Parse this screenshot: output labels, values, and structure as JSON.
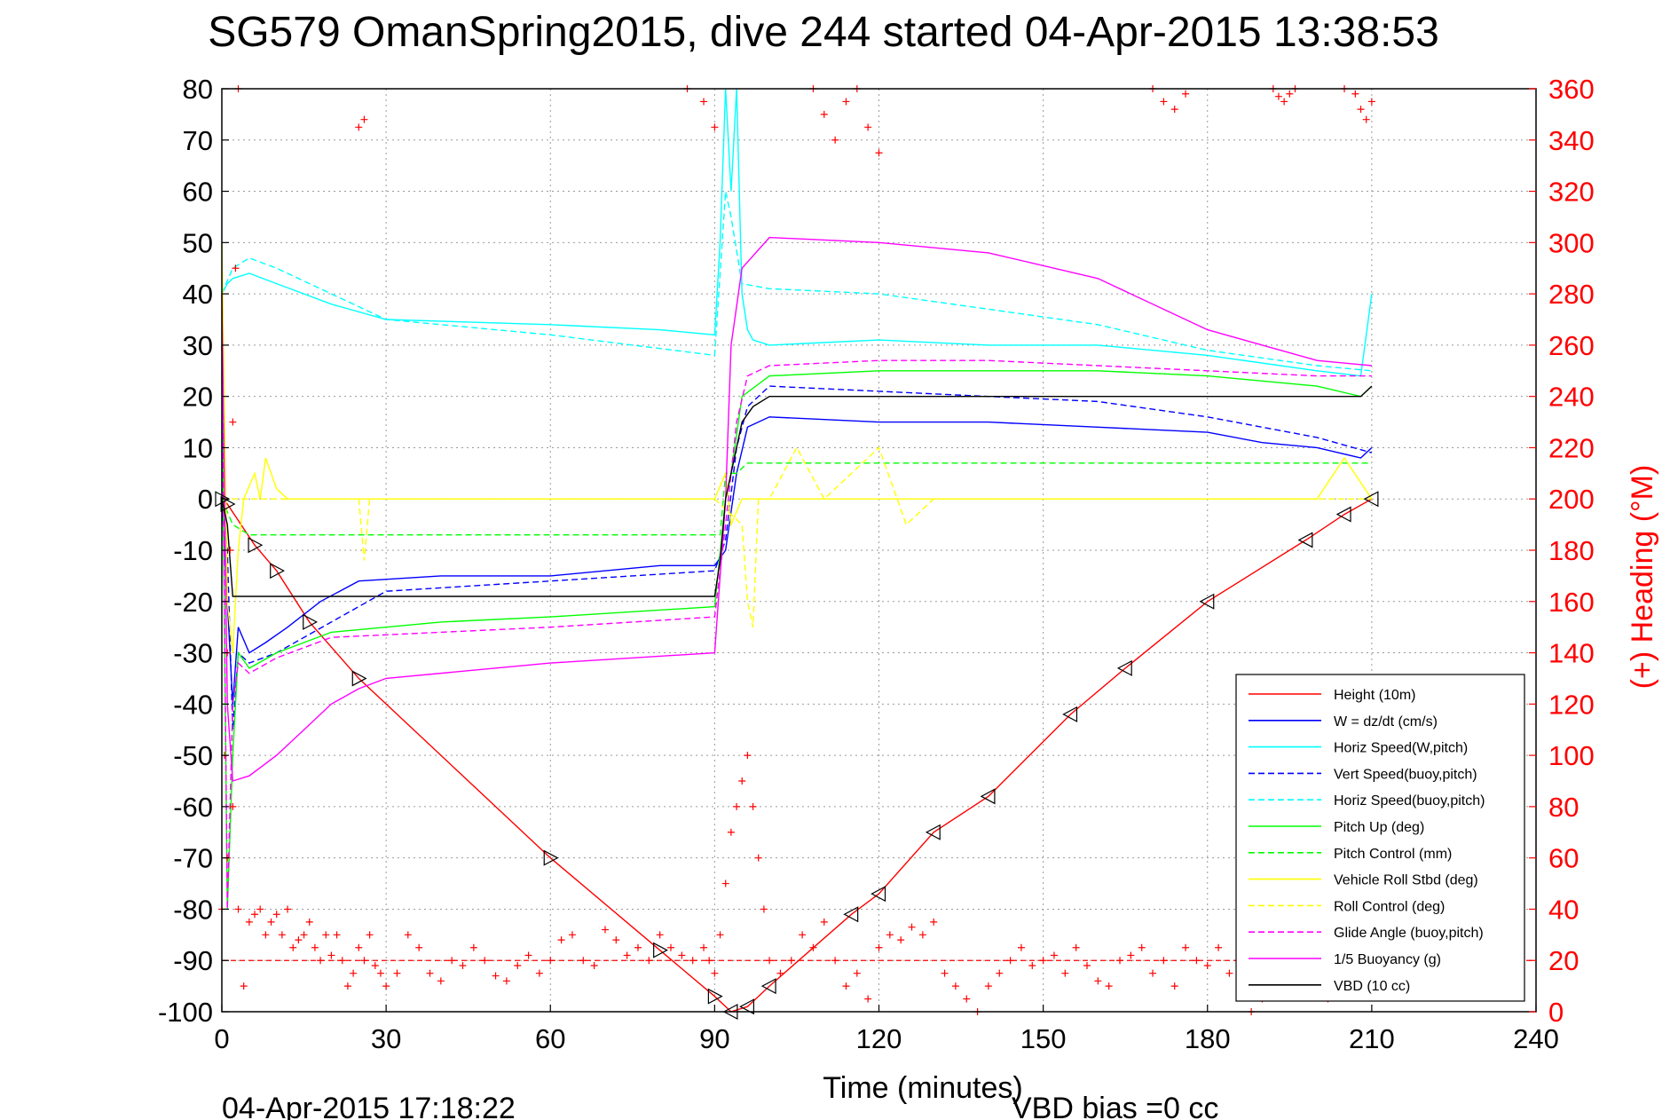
{
  "chart_data": {
    "type": "line",
    "title": "SG579 OmanSpring2015, dive 244 started 04-Apr-2015 13:38:53",
    "xlabel": "Time (minutes)",
    "ylabel_right": "(+) Heading (°M)",
    "xlim": [
      0,
      240
    ],
    "ylim": [
      -100,
      80
    ],
    "ylim_right": [
      0,
      360
    ],
    "x_ticks": [
      "0",
      "30",
      "60",
      "90",
      "120",
      "150",
      "180",
      "210",
      "240"
    ],
    "y_ticks": [
      "80",
      "70",
      "60",
      "50",
      "40",
      "30",
      "20",
      "10",
      "0",
      "-10",
      "-20",
      "-30",
      "-40",
      "-50",
      "-60",
      "-70",
      "-80",
      "-90",
      "-100"
    ],
    "y_ticks_right": [
      "360",
      "340",
      "320",
      "300",
      "280",
      "260",
      "240",
      "220",
      "200",
      "180",
      "160",
      "140",
      "120",
      "100",
      "80",
      "60",
      "40",
      "20",
      "0"
    ],
    "grid": true,
    "legend_position": "lower-right",
    "footer_left": "04-Apr-2015 17:18:22",
    "footer_right": "VBD bias =0 cc",
    "colors": {
      "red": "#ff0000",
      "blue": "#0000ff",
      "cyan": "#00ffff",
      "green": "#00ff00",
      "yellow": "#ffff00",
      "magenta": "#ff00ff",
      "black": "#000000"
    },
    "series": [
      {
        "name": "Height (10m)",
        "color": "#ff0000",
        "dash": false,
        "x": [
          0,
          1,
          6,
          10,
          16,
          25,
          60,
          80,
          90,
          93,
          96,
          100,
          115,
          120,
          130,
          140,
          155,
          165,
          180,
          198,
          205,
          210
        ],
        "y": [
          0,
          -1,
          -9,
          -14,
          -24,
          -35,
          -70,
          -88,
          -97,
          -100,
          -99,
          -95,
          -81,
          -77,
          -65,
          -58,
          -42,
          -33,
          -20,
          -8,
          -3,
          0
        ]
      },
      {
        "name": "W = dz/dt (cm/s)",
        "color": "#0000ff",
        "dash": false,
        "x": [
          0,
          1,
          2,
          3,
          5,
          8,
          12,
          18,
          25,
          40,
          60,
          80,
          90,
          92,
          94,
          96,
          100,
          120,
          140,
          160,
          180,
          190,
          200,
          208,
          210
        ],
        "y": [
          0,
          -20,
          -40,
          -25,
          -30,
          -28,
          -25,
          -20,
          -16,
          -15,
          -15,
          -13,
          -13,
          -10,
          5,
          14,
          16,
          15,
          15,
          14,
          13,
          11,
          10,
          8,
          10
        ]
      },
      {
        "name": "Horiz Speed(W,pitch)",
        "color": "#00ffff",
        "dash": false,
        "x": [
          0,
          1,
          2,
          5,
          10,
          20,
          30,
          60,
          80,
          90,
          91,
          92,
          93,
          94,
          95,
          96,
          97,
          100,
          120,
          140,
          160,
          180,
          200,
          208,
          210
        ],
        "y": [
          40,
          42,
          43,
          44,
          42,
          38,
          35,
          34,
          33,
          32,
          50,
          80,
          60,
          80,
          40,
          33,
          31,
          30,
          31,
          30,
          30,
          28,
          25,
          24,
          40
        ]
      },
      {
        "name": "Vert Speed(buoy,pitch)",
        "color": "#0000ff",
        "dash": true,
        "x": [
          0,
          1,
          2,
          3,
          5,
          10,
          20,
          30,
          60,
          90,
          92,
          94,
          96,
          100,
          120,
          140,
          160,
          180,
          200,
          210
        ],
        "y": [
          0,
          -10,
          -45,
          -30,
          -32,
          -30,
          -24,
          -18,
          -16,
          -14,
          -8,
          10,
          18,
          22,
          21,
          20,
          19,
          16,
          12,
          9
        ]
      },
      {
        "name": "Horiz Speed(buoy,pitch)",
        "color": "#00ffff",
        "dash": true,
        "x": [
          0,
          2,
          5,
          10,
          20,
          30,
          60,
          90,
          92,
          93,
          95,
          100,
          120,
          140,
          160,
          180,
          200,
          210
        ],
        "y": [
          40,
          45,
          47,
          45,
          40,
          35,
          32,
          28,
          60,
          55,
          42,
          41,
          40,
          37,
          34,
          29,
          26,
          25
        ]
      },
      {
        "name": "Pitch Up (deg)",
        "color": "#00ff00",
        "dash": false,
        "x": [
          0,
          1,
          2,
          3,
          5,
          10,
          20,
          40,
          60,
          90,
          92,
          93,
          95,
          100,
          120,
          140,
          160,
          180,
          200,
          208,
          210
        ],
        "y": [
          25,
          -80,
          -50,
          -30,
          -33,
          -30,
          -26,
          -24,
          -23,
          -21,
          0,
          5,
          20,
          24,
          25,
          25,
          25,
          24,
          22,
          20,
          22
        ]
      },
      {
        "name": "Pitch Control (mm)",
        "color": "#00ff00",
        "dash": true,
        "x": [
          0,
          2,
          5,
          20,
          60,
          91,
          92,
          94,
          96,
          100,
          120,
          160,
          200,
          210
        ],
        "y": [
          0,
          -5,
          -7,
          -7,
          -7,
          -7,
          5,
          5,
          7,
          7,
          7,
          7,
          7,
          7
        ]
      },
      {
        "name": "Vehicle Roll Stbd (deg)",
        "color": "#ffff00",
        "dash": false,
        "x": [
          0,
          1,
          2,
          3,
          4,
          6,
          7,
          8,
          10,
          12,
          15,
          20,
          40,
          60,
          80,
          90,
          92,
          93,
          95,
          100,
          105,
          110,
          120,
          130,
          140,
          160,
          180,
          200,
          205,
          210
        ],
        "y": [
          50,
          -20,
          -30,
          -10,
          0,
          5,
          0,
          8,
          2,
          0,
          0,
          0,
          0,
          0,
          0,
          0,
          5,
          -5,
          0,
          0,
          0,
          0,
          0,
          0,
          0,
          0,
          0,
          0,
          8,
          0
        ]
      },
      {
        "name": "Roll Control (deg)",
        "color": "#ffff00",
        "dash": true,
        "x": [
          0,
          2,
          5,
          20,
          25,
          26,
          27,
          40,
          60,
          80,
          90,
          95,
          96,
          97,
          98,
          100,
          105,
          110,
          120,
          125,
          130,
          135,
          140,
          150,
          160,
          180,
          200,
          210
        ],
        "y": [
          0,
          0,
          0,
          0,
          0,
          -12,
          0,
          0,
          0,
          0,
          0,
          -5,
          -20,
          -25,
          0,
          0,
          10,
          0,
          10,
          -5,
          0,
          0,
          0,
          0,
          0,
          0,
          0,
          0
        ]
      },
      {
        "name": "Glide Angle (buoy,pitch)",
        "color": "#ff00ff",
        "dash": true,
        "x": [
          0,
          1,
          2,
          3,
          5,
          10,
          20,
          40,
          60,
          90,
          92,
          94,
          96,
          100,
          120,
          140,
          160,
          180,
          200,
          210
        ],
        "y": [
          30,
          -80,
          -40,
          -32,
          -34,
          -31,
          -27,
          -26,
          -25,
          -23,
          -5,
          15,
          24,
          26,
          27,
          27,
          26,
          25,
          24,
          24
        ]
      },
      {
        "name": "1/5 Buoyancy (g)",
        "color": "#ff00ff",
        "dash": false,
        "x": [
          0,
          1,
          2,
          5,
          10,
          15,
          20,
          25,
          30,
          60,
          90,
          92,
          93,
          95,
          100,
          120,
          140,
          160,
          180,
          200,
          210
        ],
        "y": [
          40,
          -40,
          -55,
          -54,
          -50,
          -45,
          -40,
          -37,
          -35,
          -32,
          -30,
          0,
          30,
          45,
          51,
          50,
          48,
          43,
          33,
          27,
          26
        ]
      },
      {
        "name": "VBD (10 cc)",
        "color": "#000000",
        "dash": false,
        "x": [
          0,
          1,
          2,
          90,
          91,
          92,
          93,
          95,
          97,
          100,
          180,
          208,
          210
        ],
        "y": [
          0,
          -5,
          -19,
          -19,
          -12,
          0,
          5,
          15,
          18,
          20,
          20,
          20,
          22
        ]
      }
    ],
    "heading": {
      "name": "(+) Heading",
      "color": "#ff0000",
      "x": [
        0,
        1,
        2,
        3,
        4,
        5,
        6,
        7,
        8,
        9,
        10,
        11,
        12,
        13,
        14,
        15,
        16,
        17,
        18,
        19,
        20,
        21,
        22,
        23,
        24,
        25,
        26,
        27,
        28,
        29,
        30,
        32,
        34,
        36,
        38,
        40,
        42,
        44,
        46,
        48,
        50,
        52,
        54,
        56,
        58,
        60,
        62,
        64,
        66,
        68,
        70,
        72,
        74,
        76,
        78,
        80,
        82,
        84,
        86,
        88,
        89,
        90,
        91,
        92,
        93,
        94,
        95,
        96,
        97,
        98,
        99,
        100,
        102,
        104,
        106,
        108,
        110,
        112,
        114,
        116,
        118,
        120,
        122,
        124,
        126,
        128,
        130,
        132,
        134,
        136,
        138,
        140,
        142,
        144,
        146,
        148,
        150,
        152,
        154,
        156,
        158,
        160,
        162,
        164,
        166,
        168,
        170,
        172,
        174,
        176,
        178,
        180,
        182,
        184,
        186,
        188,
        190,
        192,
        194,
        196,
        198,
        200,
        202,
        204,
        206,
        208,
        210
      ],
      "y": [
        40,
        60,
        80,
        40,
        10,
        35,
        38,
        40,
        30,
        35,
        38,
        30,
        40,
        25,
        28,
        30,
        35,
        25,
        20,
        30,
        22,
        30,
        20,
        10,
        15,
        25,
        20,
        30,
        18,
        15,
        10,
        15,
        30,
        25,
        15,
        12,
        20,
        18,
        25,
        20,
        14,
        12,
        18,
        22,
        15,
        20,
        28,
        30,
        20,
        18,
        32,
        28,
        22,
        25,
        20,
        30,
        25,
        22,
        20,
        25,
        20,
        15,
        30,
        50,
        70,
        80,
        90,
        100,
        80,
        60,
        40,
        20,
        15,
        20,
        30,
        25,
        35,
        20,
        10,
        15,
        5,
        25,
        30,
        28,
        33,
        30,
        35,
        15,
        10,
        5,
        0,
        10,
        15,
        20,
        25,
        18,
        20,
        22,
        15,
        25,
        18,
        12,
        10,
        20,
        22,
        25,
        15,
        20,
        10,
        25,
        20,
        18,
        25,
        15,
        10,
        0,
        5,
        10,
        15,
        20,
        25,
        15,
        5,
        10,
        15,
        20,
        15
      ],
      "tracks": [
        {
          "x": [
            0.5,
            1,
            1.5,
            2,
            2.5,
            3
          ],
          "y": [
            100,
            140,
            180,
            230,
            290,
            360
          ]
        },
        {
          "x": [
            25,
            26
          ],
          "y": [
            345,
            348
          ]
        },
        {
          "x": [
            85,
            88,
            90
          ],
          "y": [
            360,
            355,
            345
          ]
        },
        {
          "x": [
            108,
            110,
            112,
            114,
            116,
            118,
            120
          ],
          "y": [
            360,
            350,
            340,
            355,
            360,
            345,
            335
          ]
        },
        {
          "x": [
            170,
            172,
            174,
            176
          ],
          "y": [
            360,
            355,
            352,
            358
          ]
        },
        {
          "x": [
            192,
            193,
            194,
            195,
            196
          ],
          "y": [
            360,
            357,
            355,
            358,
            360
          ]
        },
        {
          "x": [
            205,
            207,
            208,
            209,
            210
          ],
          "y": [
            360,
            358,
            352,
            348,
            355
          ]
        }
      ],
      "ref_y": 20
    }
  }
}
